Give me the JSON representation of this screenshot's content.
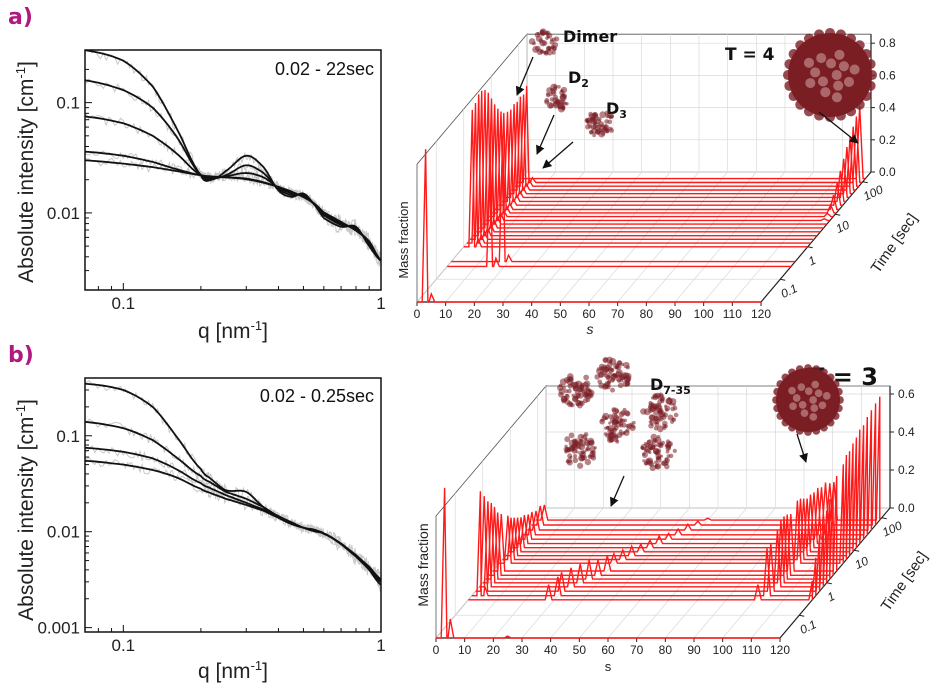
{
  "colors": {
    "panel_label": "#b0177f",
    "fit": "#111111",
    "data": "#c8c8c8",
    "series3d": "#ff1a1a",
    "molecule": "#7a1e24",
    "grid": "#d9d9d9"
  },
  "chart_data": [
    {
      "id": "a-saxs",
      "panel": "a)",
      "type": "line",
      "annotation": "0.02 - 22sec",
      "xlabel": "q [nm",
      "xlabel_sup": "-1",
      "xlabel_end": "]",
      "ylabel": "Absolute intensity [cm",
      "ylabel_sup": "-1",
      "ylabel_end": "]",
      "xscale": "log",
      "yscale": "log",
      "xlim": [
        0.071,
        1
      ],
      "ylim": [
        0.002,
        0.3
      ],
      "xticks": [
        "0.1",
        "1"
      ],
      "yticks": [
        "0.1",
        "0.01"
      ],
      "x": [
        0.07,
        0.1,
        0.13,
        0.16,
        0.2,
        0.22,
        0.25,
        0.3,
        0.35,
        0.4,
        0.45,
        0.5,
        0.55,
        0.6,
        0.7,
        0.8,
        0.9,
        1.0
      ],
      "series": [
        {
          "values": [
            0.3,
            0.24,
            0.14,
            0.06,
            0.022,
            0.02,
            0.024,
            0.033,
            0.026,
            0.016,
            0.014,
            0.015,
            0.012,
            0.009,
            0.0075,
            0.0075,
            0.005,
            0.0037
          ]
        },
        {
          "values": [
            0.16,
            0.13,
            0.09,
            0.05,
            0.022,
            0.0205,
            0.022,
            0.027,
            0.023,
            0.0165,
            0.0145,
            0.0145,
            0.012,
            0.0095,
            0.0078,
            0.0073,
            0.0052,
            0.0037
          ]
        },
        {
          "values": [
            0.075,
            0.065,
            0.05,
            0.035,
            0.022,
            0.021,
            0.0215,
            0.023,
            0.021,
            0.017,
            0.015,
            0.0143,
            0.012,
            0.0098,
            0.008,
            0.0071,
            0.0054,
            0.0037
          ]
        },
        {
          "values": [
            0.036,
            0.033,
            0.029,
            0.025,
            0.022,
            0.0213,
            0.021,
            0.0205,
            0.019,
            0.0172,
            0.0155,
            0.014,
            0.0122,
            0.01,
            0.0082,
            0.007,
            0.0055,
            0.0037
          ]
        },
        {
          "values": [
            0.03,
            0.028,
            0.026,
            0.024,
            0.022,
            0.0214,
            0.021,
            0.0202,
            0.0188,
            0.0172,
            0.0156,
            0.0139,
            0.0122,
            0.0101,
            0.0083,
            0.0069,
            0.0055,
            0.0037
          ]
        }
      ]
    },
    {
      "id": "a-waterfall",
      "type": "line",
      "xlabel": "s",
      "ylabel": "Mass fraction",
      "zlabel": "Time [sec]",
      "xlim": [
        0,
        120
      ],
      "ylim": [
        0,
        0.8
      ],
      "zscale": "log",
      "zlim": [
        0.02,
        200
      ],
      "xticks": [
        "0",
        "10",
        "20",
        "30",
        "40",
        "50",
        "60",
        "70",
        "80",
        "90",
        "100",
        "110",
        "120"
      ],
      "yticks": [
        "0.0",
        "0.2",
        "0.4",
        "0.6",
        "0.8"
      ],
      "zticks": [
        "0.1",
        "1",
        "10",
        "100"
      ],
      "labels": [
        {
          "main": "Dimer",
          "sub": ""
        },
        {
          "main": "D",
          "sub": "2"
        },
        {
          "main": "D",
          "sub": "3"
        },
        {
          "main": "T = 4",
          "sub": ""
        }
      ],
      "rows": [
        {
          "time": 0.02,
          "peaks": [
            [
              3,
              0.95
            ],
            [
              5,
              0.05
            ]
          ]
        },
        {
          "time": 0.25,
          "peaks": [
            [
              15,
              0.75
            ],
            [
              17,
              0.05
            ]
          ]
        },
        {
          "time": 0.35,
          "peaks": [
            [
              18,
              0.78
            ],
            [
              20,
              0.04
            ]
          ]
        },
        {
          "time": 1.0,
          "peaks": [
            [
              3,
              0.85
            ],
            [
              5,
              0.05
            ]
          ]
        },
        {
          "time": 1.3,
          "peaks": [
            [
              3,
              0.87
            ],
            [
              5,
              0.05
            ]
          ]
        },
        {
          "time": 1.7,
          "peaks": [
            [
              3,
              0.9
            ],
            [
              5,
              0.05
            ]
          ]
        },
        {
          "time": 2.2,
          "peaks": [
            [
              3,
              0.9
            ],
            [
              5,
              0.05
            ]
          ]
        },
        {
          "time": 2.9,
          "peaks": [
            [
              3,
              0.88
            ],
            [
              5,
              0.05
            ]
          ]
        },
        {
          "time": 3.8,
          "peaks": [
            [
              3,
              0.84
            ],
            [
              5,
              0.05
            ]
          ]
        },
        {
          "time": 5.0,
          "peaks": [
            [
              3,
              0.78
            ],
            [
              5,
              0.05
            ]
          ]
        },
        {
          "time": 6.5,
          "peaks": [
            [
              3,
              0.72
            ],
            [
              5,
              0.05
            ],
            [
              118,
              0.01
            ]
          ]
        },
        {
          "time": 8.5,
          "peaks": [
            [
              3,
              0.67
            ],
            [
              5,
              0.04
            ],
            [
              118,
              0.02
            ]
          ]
        },
        {
          "time": 11,
          "peaks": [
            [
              3,
              0.63
            ],
            [
              5,
              0.04
            ],
            [
              118,
              0.05
            ]
          ]
        },
        {
          "time": 14,
          "peaks": [
            [
              3,
              0.6
            ],
            [
              5,
              0.04
            ],
            [
              118,
              0.09
            ]
          ]
        },
        {
          "time": 19,
          "peaks": [
            [
              3,
              0.58
            ],
            [
              5,
              0.04
            ],
            [
              118,
              0.14
            ]
          ]
        },
        {
          "time": 25,
          "peaks": [
            [
              3,
              0.57
            ],
            [
              5,
              0.04
            ],
            [
              118,
              0.19
            ]
          ]
        },
        {
          "time": 33,
          "peaks": [
            [
              3,
              0.58
            ],
            [
              5,
              0.04
            ],
            [
              118,
              0.24
            ]
          ]
        },
        {
          "time": 43,
          "peaks": [
            [
              3,
              0.57
            ],
            [
              5,
              0.04
            ],
            [
              118,
              0.29
            ]
          ]
        },
        {
          "time": 56,
          "peaks": [
            [
              3,
              0.58
            ],
            [
              5,
              0.04
            ],
            [
              118,
              0.33
            ]
          ]
        },
        {
          "time": 73,
          "peaks": [
            [
              3,
              0.57
            ],
            [
              5,
              0.04
            ],
            [
              118,
              0.37
            ]
          ]
        },
        {
          "time": 95,
          "peaks": [
            [
              3,
              0.6
            ],
            [
              5,
              0.03
            ],
            [
              118,
              0.41
            ]
          ]
        },
        {
          "time": 125,
          "peaks": [
            [
              3,
              0.0
            ],
            [
              118,
              0.45
            ]
          ]
        }
      ]
    },
    {
      "id": "b-saxs",
      "panel": "b)",
      "type": "line",
      "annotation": "0.02 - 0.25sec",
      "xlabel": "q [nm",
      "xlabel_sup": "-1",
      "xlabel_end": "]",
      "ylabel": "Absolute intensity [cm",
      "ylabel_sup": "-1",
      "ylabel_end": "]",
      "xscale": "log",
      "yscale": "log",
      "xlim": [
        0.071,
        1
      ],
      "ylim": [
        0.0009,
        0.4
      ],
      "xticks": [
        "0.1",
        "1"
      ],
      "yticks": [
        "0.1",
        "0.01",
        "0.001"
      ],
      "x": [
        0.07,
        0.1,
        0.13,
        0.16,
        0.2,
        0.22,
        0.25,
        0.3,
        0.35,
        0.4,
        0.45,
        0.5,
        0.55,
        0.6,
        0.7,
        0.8,
        0.9,
        1.0
      ],
      "series": [
        {
          "values": [
            0.35,
            0.3,
            0.2,
            0.1,
            0.045,
            0.035,
            0.027,
            0.026,
            0.018,
            0.014,
            0.012,
            0.011,
            0.0105,
            0.0095,
            0.0075,
            0.0055,
            0.004,
            0.0028
          ]
        },
        {
          "values": [
            0.14,
            0.12,
            0.09,
            0.06,
            0.038,
            0.032,
            0.026,
            0.022,
            0.018,
            0.0145,
            0.0125,
            0.011,
            0.0103,
            0.0096,
            0.0074,
            0.0055,
            0.0041,
            0.003
          ]
        },
        {
          "values": [
            0.075,
            0.068,
            0.058,
            0.045,
            0.032,
            0.028,
            0.024,
            0.02,
            0.017,
            0.0145,
            0.0125,
            0.011,
            0.0102,
            0.0096,
            0.0075,
            0.0056,
            0.0042,
            0.0031
          ]
        },
        {
          "values": [
            0.055,
            0.05,
            0.044,
            0.037,
            0.028,
            0.025,
            0.022,
            0.019,
            0.0165,
            0.014,
            0.0123,
            0.011,
            0.0101,
            0.0095,
            0.0075,
            0.0057,
            0.0043,
            0.0032
          ]
        }
      ]
    },
    {
      "id": "b-waterfall",
      "type": "line",
      "xlabel": "s",
      "ylabel": "Mass fraction",
      "zlabel": "Time [sec]",
      "xlim": [
        0,
        120
      ],
      "ylim": [
        0,
        0.6
      ],
      "zscale": "log",
      "zlim": [
        0.02,
        200
      ],
      "xticks": [
        "0",
        "10",
        "20",
        "30",
        "40",
        "50",
        "60",
        "70",
        "80",
        "90",
        "100",
        "110",
        "120"
      ],
      "yticks": [
        "0.0",
        "0.2",
        "0.4",
        "0.6"
      ],
      "zticks": [
        "0.1",
        "1",
        "10",
        "100"
      ],
      "labels": [
        {
          "main": "D",
          "sub": "7-35"
        },
        {
          "main": "T = 3",
          "sub": ""
        }
      ],
      "rows": [
        {
          "time": 0.02,
          "peaks": [
            [
              3,
              0.79
            ],
            [
              5,
              0.1
            ],
            [
              25,
              0.01
            ]
          ]
        },
        {
          "time": 0.3,
          "peaks": [
            [
              3,
              0.0
            ],
            [
              28,
              0.08
            ],
            [
              101,
              0.08
            ],
            [
              120,
              0.1
            ]
          ]
        },
        {
          "time": 0.4,
          "peaks": [
            [
              3,
              0.55
            ],
            [
              4.5,
              0.05
            ],
            [
              30,
              0.1
            ],
            [
              103,
              0.25
            ],
            [
              120,
              0.2
            ]
          ]
        },
        {
          "time": 0.55,
          "peaks": [
            [
              3,
              0.5
            ],
            [
              30,
              0.1
            ],
            [
              103,
              0.25
            ],
            [
              120,
              0.3
            ]
          ]
        },
        {
          "time": 0.75,
          "peaks": [
            [
              3,
              0.45
            ],
            [
              32,
              0.1
            ],
            [
              104,
              0.3
            ],
            [
              120,
              0.33
            ]
          ]
        },
        {
          "time": 1.0,
          "peaks": [
            [
              3,
              0.42
            ],
            [
              34,
              0.1
            ],
            [
              104,
              0.33
            ],
            [
              120,
              0.38
            ]
          ]
        },
        {
          "time": 1.3,
          "peaks": [
            [
              3,
              0.38
            ],
            [
              36,
              0.1
            ],
            [
              104,
              0.33
            ],
            [
              120,
              0.42
            ]
          ]
        },
        {
          "time": 1.7,
          "peaks": [
            [
              3,
              0.33
            ],
            [
              38,
              0.08
            ],
            [
              104,
              0.32
            ],
            [
              120,
              0.45
            ]
          ]
        },
        {
          "time": 2.3,
          "peaks": [
            [
              3,
              0.3
            ],
            [
              40,
              0.08
            ],
            [
              104,
              0.3
            ],
            [
              120,
              0.5
            ]
          ]
        },
        {
          "time": 4.0,
          "peaks": [
            [
              3,
              0.25
            ],
            [
              40,
              0.05
            ],
            [
              104,
              0.33
            ],
            [
              120,
              0.52
            ]
          ]
        },
        {
          "time": 5.2,
          "peaks": [
            [
              3,
              0.22
            ],
            [
              42,
              0.05
            ],
            [
              104,
              0.32
            ],
            [
              120,
              0.55
            ]
          ]
        },
        {
          "time": 6.8,
          "peaks": [
            [
              3,
              0.2
            ],
            [
              44,
              0.05
            ],
            [
              104,
              0.3
            ],
            [
              120,
              0.55
            ]
          ]
        },
        {
          "time": 9,
          "peaks": [
            [
              3,
              0.18
            ],
            [
              46,
              0.04
            ],
            [
              104,
              0.28
            ],
            [
              120,
              0.57
            ]
          ]
        },
        {
          "time": 12,
          "peaks": [
            [
              3,
              0.16
            ],
            [
              48,
              0.04
            ],
            [
              104,
              0.28
            ],
            [
              120,
              0.58
            ]
          ]
        },
        {
          "time": 16,
          "peaks": [
            [
              3,
              0.15
            ],
            [
              50,
              0.04
            ],
            [
              104,
              0.27
            ],
            [
              120,
              0.6
            ]
          ]
        },
        {
          "time": 22,
          "peaks": [
            [
              3,
              0.13
            ],
            [
              52,
              0.03
            ],
            [
              104,
              0.27
            ],
            [
              120,
              0.6
            ]
          ]
        },
        {
          "time": 30,
          "peaks": [
            [
              3,
              0.12
            ],
            [
              54,
              0.03
            ],
            [
              104,
              0.25
            ],
            [
              120,
              0.62
            ]
          ]
        },
        {
          "time": 42,
          "peaks": [
            [
              3,
              0.1
            ],
            [
              56,
              0.03
            ],
            [
              104,
              0.25
            ],
            [
              120,
              0.63
            ]
          ]
        },
        {
          "time": 60,
          "peaks": [
            [
              3,
              0.1
            ],
            [
              58,
              0.02
            ],
            [
              104,
              0.22
            ],
            [
              120,
              0.64
            ]
          ]
        },
        {
          "time": 85,
          "peaks": [
            [
              3,
              0.08
            ],
            [
              60,
              0.01
            ],
            [
              104,
              0.2
            ],
            [
              120,
              0.65
            ]
          ]
        }
      ]
    }
  ]
}
